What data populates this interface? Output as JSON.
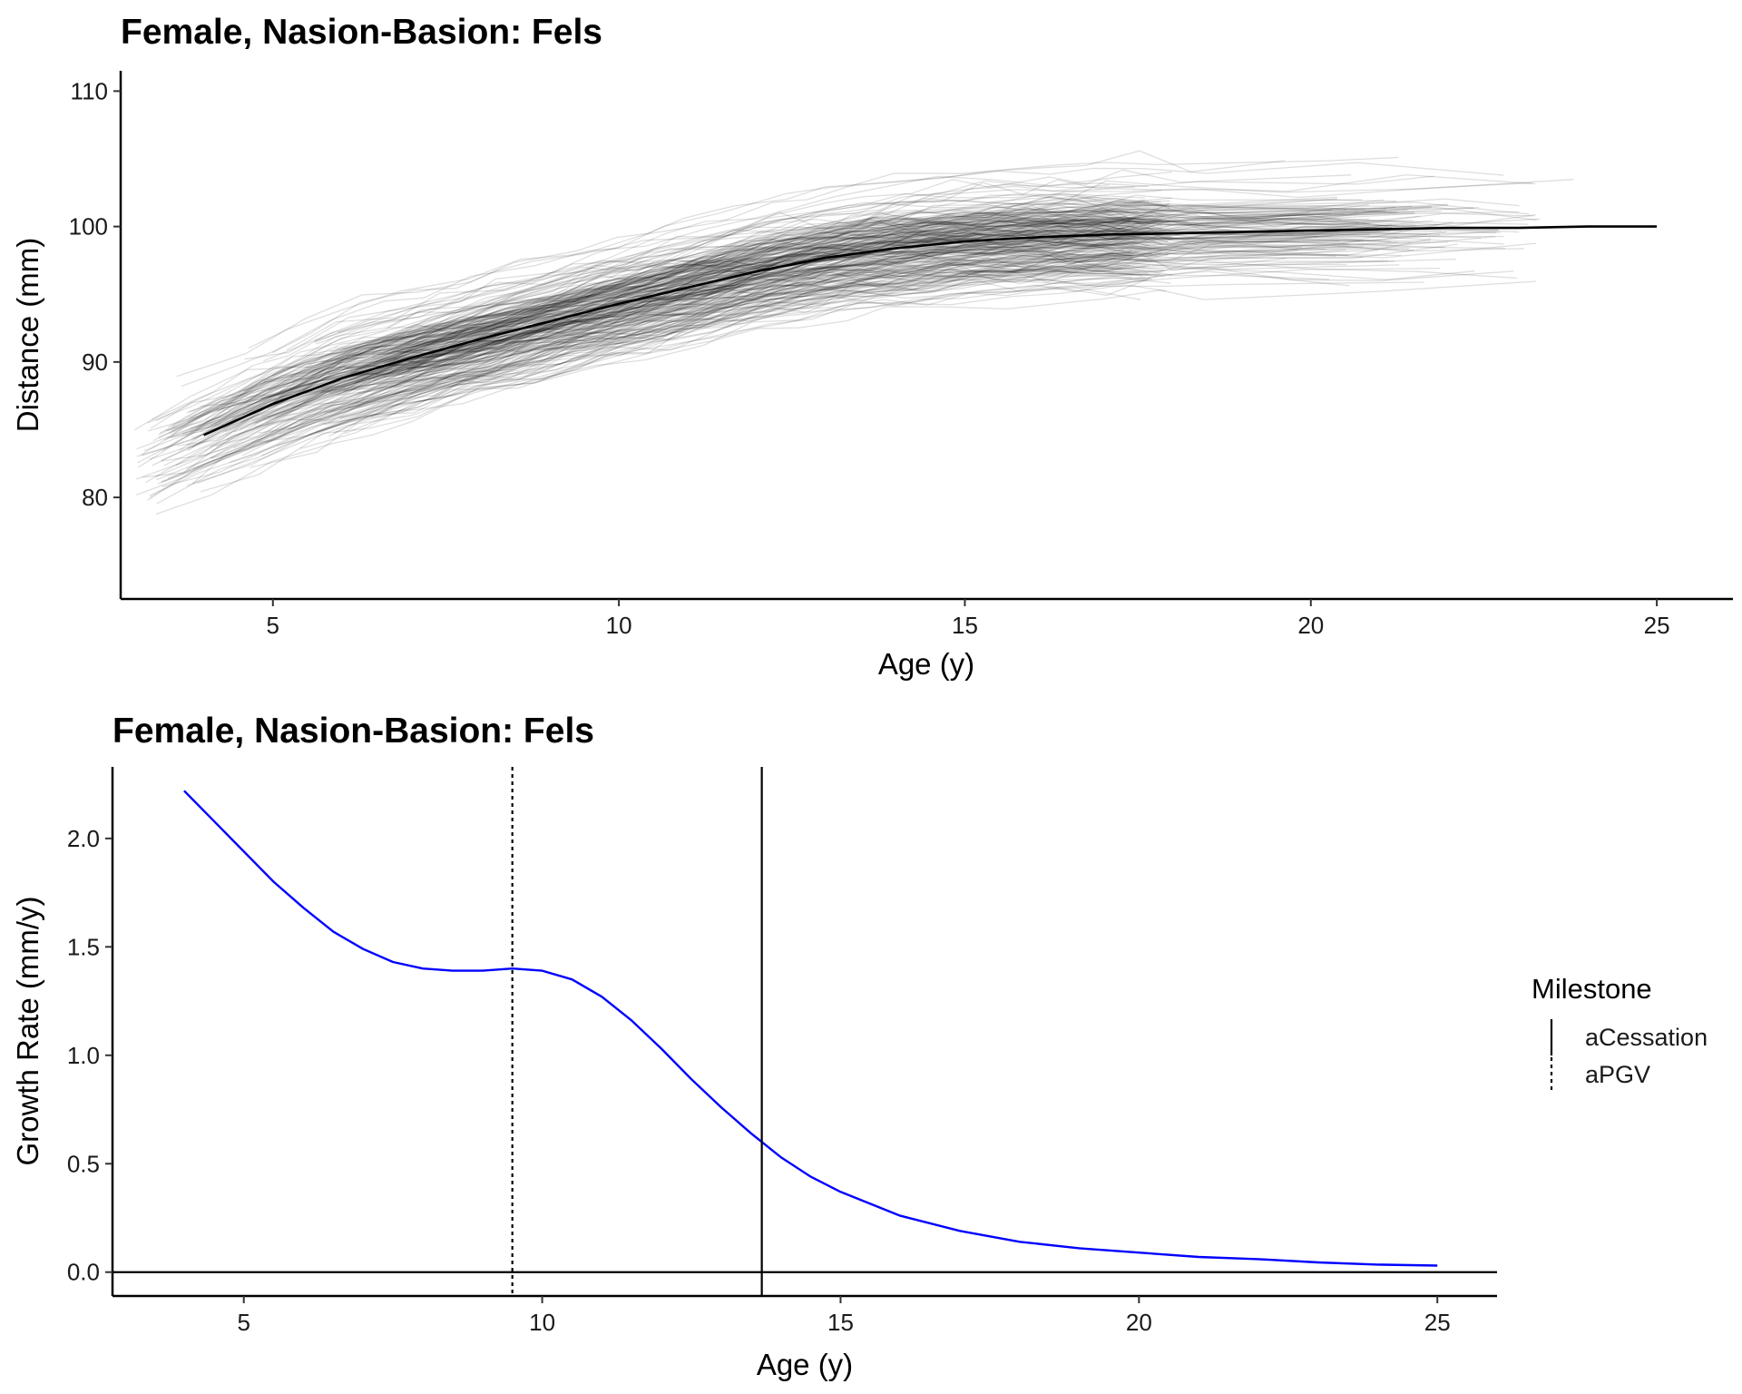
{
  "chart_data": [
    {
      "type": "line",
      "title": "Female, Nasion-Basion: Fels",
      "xlabel": "Age (y)",
      "ylabel": "Distance (mm)",
      "xlim": [
        2.8,
        26.1
      ],
      "ylim": [
        72.5,
        111.5
      ],
      "x_ticks": [
        5,
        10,
        15,
        20,
        25
      ],
      "y_ticks": [
        80,
        90,
        100,
        110
      ],
      "grid": false,
      "individual_trajectories": {
        "description_color": "#000000",
        "opacity": 0.13,
        "note": "many individual growth curves spanning ages ~3-24 y"
      },
      "series": [
        {
          "name": "",
          "color": "#000000",
          "x": [
            4,
            5,
            6,
            7,
            8,
            9,
            10,
            11,
            12,
            13,
            14,
            15,
            16,
            17,
            18,
            19,
            20,
            21,
            22,
            23,
            24,
            25
          ],
          "y": [
            84.6,
            86.9,
            88.8,
            90.3,
            91.7,
            93.0,
            94.3,
            95.5,
            96.7,
            97.7,
            98.4,
            98.9,
            99.2,
            99.4,
            99.5,
            99.6,
            99.7,
            99.8,
            99.9,
            99.9,
            100.0,
            100.0
          ]
        }
      ]
    },
    {
      "type": "line",
      "title": "Female, Nasion-Basion: Fels",
      "xlabel": "Age (y)",
      "ylabel": "Growth Rate (mm/y)",
      "xlim": [
        2.8,
        26.0
      ],
      "ylim": [
        -0.11,
        2.33
      ],
      "x_ticks": [
        5,
        10,
        15,
        20,
        25
      ],
      "y_ticks": [
        "0.0",
        "0.5",
        "1.0",
        "1.5",
        "2.0"
      ],
      "grid": false,
      "hline": 0,
      "series": [
        {
          "name": "",
          "color": "#0000ff",
          "x": [
            4,
            4.5,
            5,
            5.5,
            6,
            6.5,
            7,
            7.5,
            8,
            8.5,
            9,
            9.5,
            10,
            10.5,
            11,
            11.5,
            12,
            12.5,
            13,
            13.5,
            14,
            14.5,
            15,
            16,
            17,
            18,
            19,
            20,
            21,
            22,
            23,
            24,
            25
          ],
          "y": [
            2.22,
            2.08,
            1.94,
            1.8,
            1.68,
            1.57,
            1.49,
            1.43,
            1.4,
            1.39,
            1.39,
            1.4,
            1.39,
            1.35,
            1.27,
            1.16,
            1.03,
            0.89,
            0.76,
            0.64,
            0.53,
            0.44,
            0.37,
            0.26,
            0.19,
            0.14,
            0.11,
            0.09,
            0.07,
            0.06,
            0.045,
            0.035,
            0.03
          ]
        }
      ],
      "milestones": [
        {
          "name": "aCessation",
          "x": 13.68,
          "style": "solid"
        },
        {
          "name": "aPGV",
          "x": 9.5,
          "style": "dotted"
        }
      ],
      "legend": {
        "title": "Milestone",
        "position": "right",
        "items": [
          {
            "label": "aCessation",
            "style": "solid"
          },
          {
            "label": "aPGV",
            "style": "dotted"
          }
        ]
      }
    }
  ]
}
